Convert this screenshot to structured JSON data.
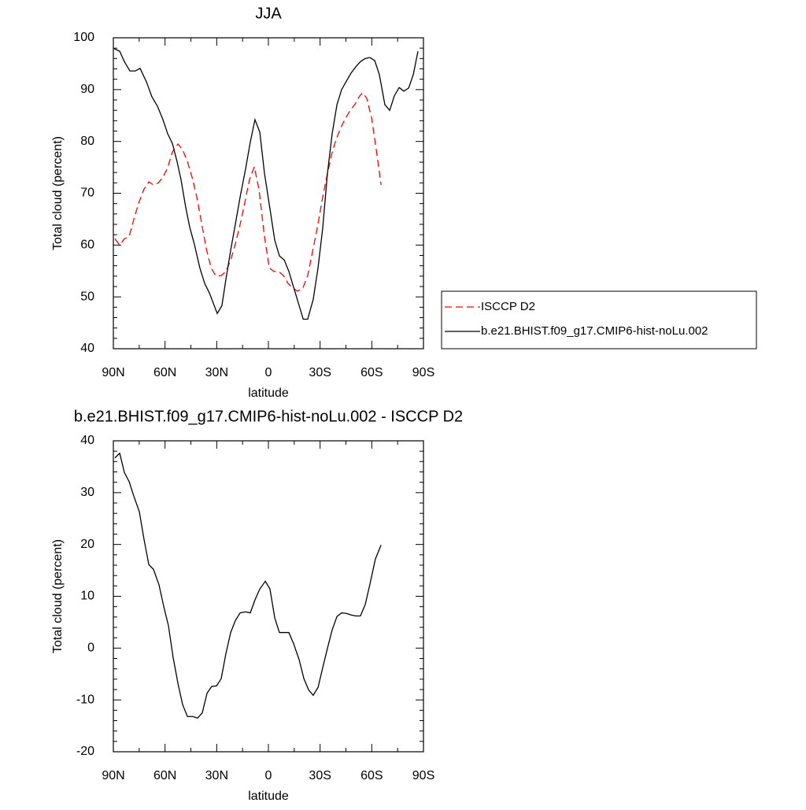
{
  "chart_data": [
    {
      "type": "line",
      "title": "JJA",
      "xlabel": "latitude",
      "ylabel": "Total cloud (percent)",
      "xlim": [
        90,
        -90
      ],
      "xticks": [
        {
          "value": 90,
          "label": "90N"
        },
        {
          "value": 60,
          "label": "60N"
        },
        {
          "value": 30,
          "label": "30N"
        },
        0,
        {
          "value": -30,
          "label": "30S"
        },
        {
          "value": -60,
          "label": "60S"
        },
        {
          "value": -90,
          "label": "90S"
        }
      ],
      "ylim": [
        40,
        100
      ],
      "yticks": [
        40,
        50,
        60,
        70,
        80,
        90,
        100
      ],
      "legend": "right",
      "series": [
        {
          "name": "ISCCP D2",
          "color": "#ff0000",
          "dash": "dashed",
          "x": [
            89.1,
            86.3,
            83.6,
            80.8,
            78.1,
            75.3,
            72.2,
            69.4,
            66.7,
            63.9,
            61.2,
            58.5,
            55.7,
            52.5,
            49.8,
            47.0,
            44.3,
            41.6,
            38.8,
            36.1,
            33.3,
            30.6,
            27.4,
            24.7,
            21.9,
            19.2,
            16.4,
            13.7,
            11.0,
            8.2,
            5.5,
            2.3,
            -0.5,
            -3.2,
            -6.0,
            -8.7,
            -11.4,
            -14.2,
            -16.9,
            -20.1,
            -22.8,
            -25.6,
            -28.3,
            -31.1,
            -33.8,
            -36.6,
            -39.3,
            -42.1,
            -44.8,
            -47.5,
            -50.3,
            -53.0,
            -54.8,
            -57.1,
            -59.9,
            -62.6,
            -65.4
          ],
          "values": [
            61.2,
            60.0,
            61.2,
            61.7,
            65.0,
            68.1,
            70.8,
            72.2,
            71.6,
            72.0,
            73.1,
            74.9,
            78.0,
            79.5,
            78.4,
            76.1,
            73.1,
            69.3,
            64.3,
            59.4,
            55.6,
            54.1,
            54.1,
            54.9,
            57.1,
            60.2,
            64.0,
            68.2,
            72.6,
            75.1,
            70.8,
            61.7,
            55.6,
            54.9,
            54.9,
            54.1,
            52.6,
            51.7,
            51.1,
            51.8,
            54.1,
            58.7,
            63.2,
            68.5,
            73.1,
            77.4,
            80.4,
            82.7,
            84.5,
            86.0,
            87.2,
            88.8,
            89.4,
            88.3,
            84.5,
            78.4,
            71.6
          ]
        },
        {
          "name": "b.e21.BHIST.f09_g17.CMIP6-hist-noLu.002",
          "color": "#000000",
          "dash": "solid",
          "x": [
            89.5,
            86.3,
            83.6,
            80.4,
            77.2,
            74.5,
            70.8,
            67.6,
            64.4,
            61.2,
            58.5,
            55.7,
            53.0,
            50.7,
            48.0,
            45.7,
            43.0,
            39.8,
            37.0,
            34.3,
            32.0,
            29.7,
            27.0,
            24.7,
            21.9,
            19.2,
            16.4,
            13.3,
            10.5,
            7.8,
            5.0,
            2.3,
            -0.9,
            -3.7,
            -6.4,
            -9.2,
            -11.9,
            -14.7,
            -17.4,
            -20.2,
            -22.8,
            -26.0,
            -28.8,
            -31.5,
            -34.3,
            -37.0,
            -39.8,
            -42.5,
            -45.2,
            -48.0,
            -50.7,
            -53.4,
            -56.2,
            -58.9,
            -61.7,
            -64.4,
            -67.6,
            -70.4,
            -73.1,
            -75.9,
            -78.6,
            -81.4,
            -84.1,
            -86.8
          ],
          "values": [
            97.9,
            97.4,
            95.4,
            93.6,
            93.6,
            94.1,
            91.5,
            88.6,
            86.8,
            84.2,
            81.5,
            79.6,
            76.1,
            72.6,
            67.3,
            63.5,
            60.2,
            55.6,
            52.6,
            50.8,
            48.8,
            46.8,
            48.3,
            53.3,
            59.0,
            64.0,
            69.3,
            74.6,
            79.9,
            84.2,
            81.8,
            73.9,
            67.0,
            60.9,
            57.9,
            57.1,
            54.9,
            51.8,
            48.8,
            45.7,
            45.7,
            49.5,
            55.6,
            63.2,
            73.9,
            81.5,
            87.1,
            90.0,
            91.6,
            93.2,
            94.4,
            95.4,
            96.0,
            96.2,
            95.6,
            92.9,
            87.1,
            86.0,
            88.8,
            90.4,
            89.7,
            90.3,
            92.9,
            97.4
          ]
        }
      ]
    },
    {
      "type": "line",
      "title": "b.e21.BHIST.f09_g17.CMIP6-hist-noLu.002 - ISCCP D2",
      "xlabel": "latitude",
      "ylabel": "Total cloud (percent)",
      "xlim": [
        90,
        -90
      ],
      "xticks": [
        {
          "value": 90,
          "label": "90N"
        },
        {
          "value": 60,
          "label": "60N"
        },
        {
          "value": 30,
          "label": "30N"
        },
        0,
        {
          "value": -30,
          "label": "30S"
        },
        {
          "value": -60,
          "label": "60S"
        },
        {
          "value": -90,
          "label": "90S"
        }
      ],
      "ylim": [
        -20,
        40
      ],
      "yticks": [
        -20,
        -10,
        0,
        10,
        20,
        30,
        40
      ],
      "series": [
        {
          "color": "#000000",
          "dash": "solid",
          "x": [
            89.1,
            86.3,
            83.6,
            80.8,
            78.1,
            74.9,
            72.2,
            69.4,
            66.7,
            63.5,
            60.8,
            58.0,
            55.3,
            52.5,
            49.8,
            47.0,
            43.9,
            41.1,
            38.4,
            35.6,
            32.9,
            30.1,
            27.4,
            24.7,
            21.9,
            19.2,
            16.4,
            13.3,
            10.5,
            7.8,
            5.0,
            1.8,
            -0.9,
            -3.7,
            -6.4,
            -9.2,
            -11.9,
            -14.7,
            -17.9,
            -20.6,
            -23.4,
            -26.0,
            -28.8,
            -31.5,
            -34.3,
            -37.0,
            -39.8,
            -42.5,
            -45.2,
            -48.0,
            -50.7,
            -53.4,
            -56.2,
            -58.9,
            -62.1,
            -65.4
          ],
          "values": [
            36.7,
            37.6,
            33.9,
            32.1,
            29.3,
            26.3,
            21.0,
            16.1,
            15.2,
            12.2,
            8.1,
            4.3,
            -1.8,
            -6.8,
            -10.9,
            -13.2,
            -13.2,
            -13.5,
            -12.5,
            -8.7,
            -7.4,
            -7.3,
            -5.9,
            -1.1,
            3.0,
            5.3,
            6.8,
            7.0,
            6.8,
            9.3,
            11.4,
            12.9,
            11.4,
            5.8,
            3.0,
            3.0,
            3.0,
            0.8,
            -2.3,
            -5.9,
            -8.1,
            -9.1,
            -7.6,
            -3.8,
            0.0,
            3.5,
            6.1,
            6.8,
            6.7,
            6.4,
            6.2,
            6.2,
            8.4,
            12.3,
            17.2,
            19.9
          ]
        }
      ]
    }
  ]
}
